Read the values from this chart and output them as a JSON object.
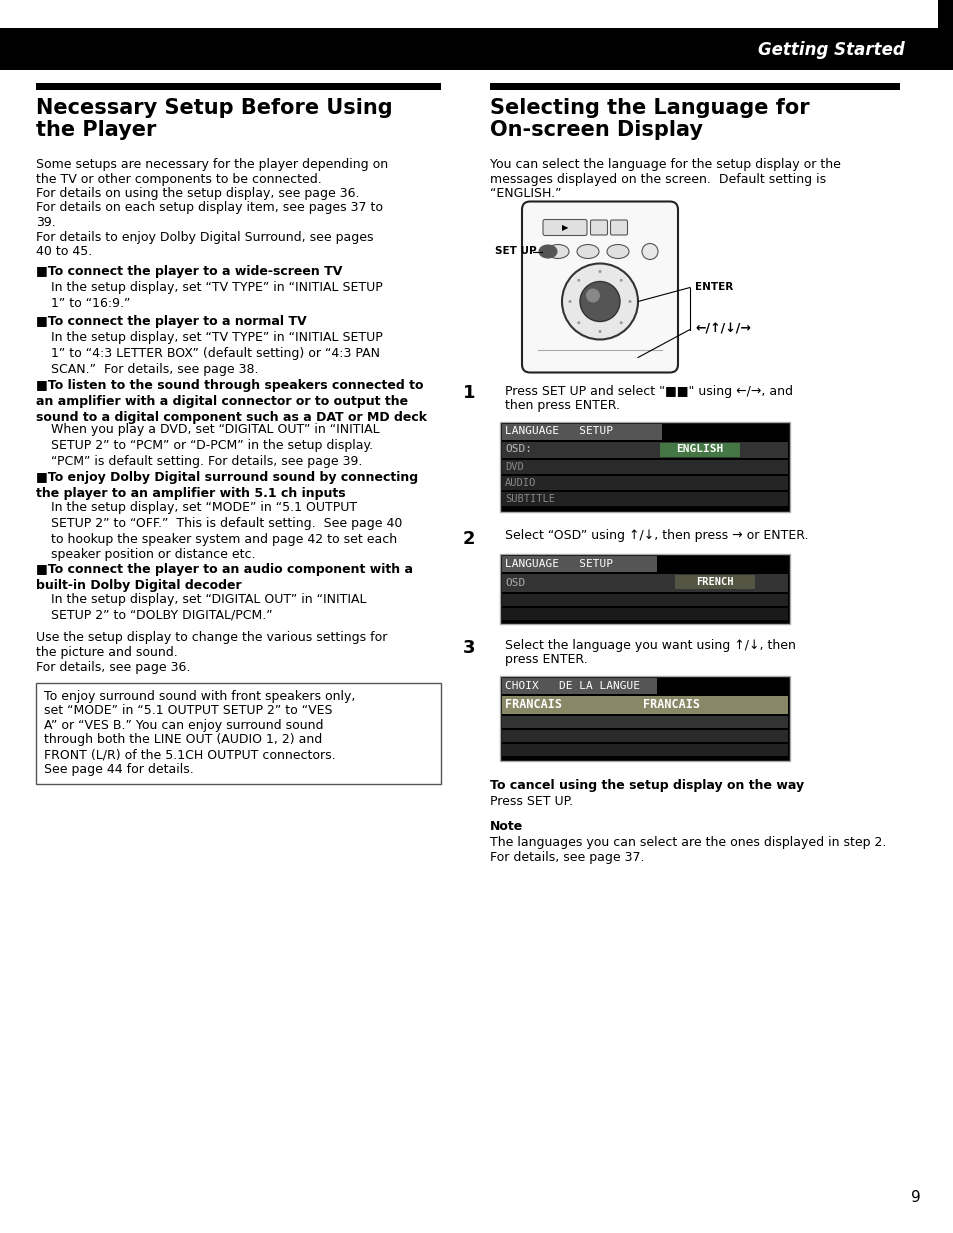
{
  "page_bg": "#ffffff",
  "header_bg": "#000000",
  "header_text": "Getting Started",
  "header_text_color": "#ffffff",
  "left_title_line1": "Necessary Setup Before Using",
  "left_title_line2": "the Player",
  "right_title_line1": "Selecting the Language for",
  "right_title_line2": "On-screen Display",
  "left_body": [
    "Some setups are necessary for the player depending on",
    "the TV or other components to be connected.",
    "For details on using the setup display, see page 36.",
    "For details on each setup display item, see pages 37 to",
    "39.",
    "For details to enjoy Dolby Digital Surround, see pages",
    "40 to 45."
  ],
  "left_bullets": [
    {
      "heading": "■To connect the player to a wide-screen TV",
      "body": "In the setup display, set “TV TYPE” in “INITIAL SETUP\n1” to “16:9.”"
    },
    {
      "heading": "■To connect the player to a normal TV",
      "body": "In the setup display, set “TV TYPE” in “INITIAL SETUP\n1” to “4:3 LETTER BOX” (default setting) or “4:3 PAN\nSCAN.”  For details, see page 38."
    },
    {
      "heading": "■To listen to the sound through speakers connected to\nan amplifier with a digital connector or to output the\nsound to a digital component such as a DAT or MD deck",
      "body": "When you play a DVD, set “DIGITAL OUT” in “INITIAL\nSETUP 2” to “PCM” or “D-PCM” in the setup display.\n“PCM” is default setting. For details, see page 39."
    },
    {
      "heading": "■To enjoy Dolby Digital surround sound by connecting\nthe player to an amplifier with 5.1 ch inputs",
      "body": "In the setup display, set “MODE” in “5.1 OUTPUT\nSETUP 2” to “OFF.”  This is default setting.  See page 40\nto hookup the speaker system and page 42 to set each\nspeaker position or distance etc."
    },
    {
      "heading": "■To connect the player to an audio component with a\nbuilt-in Dolby Digital decoder",
      "body": "In the setup display, set “DIGITAL OUT” in “INITIAL\nSETUP 2” to “DOLBY DIGITAL/PCM.”"
    }
  ],
  "left_footer_lines": [
    "Use the setup display to change the various settings for",
    "the picture and sound.",
    "For details, see page 36."
  ],
  "left_note_box_lines": [
    "To enjoy surround sound with front speakers only,",
    "set “MODE” in “5.1 OUTPUT SETUP 2” to “VES",
    "A” or “VES B.” You can enjoy surround sound",
    "through both the LINE OUT (AUDIO 1, 2) and",
    "FRONT (L/R) of the 5.1CH OUTPUT connectors.",
    "See page 44 for details."
  ],
  "right_intro_lines": [
    "You can select the language for the setup display or the",
    "messages displayed on the screen.  Default setting is",
    "“ENGLISH.”"
  ],
  "right_cancel_heading": "To cancel using the setup display on the way",
  "right_cancel_body": "Press SET UP.",
  "right_note_heading": "Note",
  "right_note_body_lines": [
    "The languages you can select are the ones displayed in step 2.",
    "For details, see page 37."
  ],
  "page_number": "9"
}
